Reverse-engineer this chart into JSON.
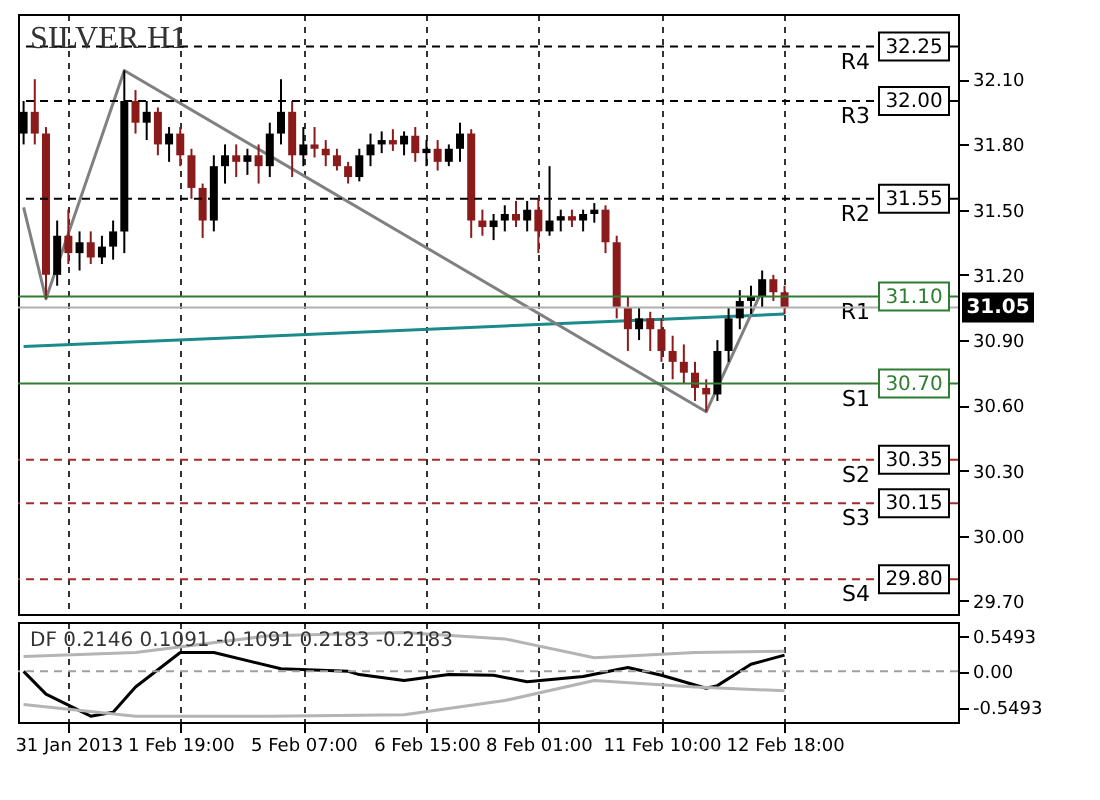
{
  "chart_data": [
    {
      "type": "candlestick",
      "title": "SILVER H1",
      "categories": [
        null,
        null,
        null,
        null,
        "31 Jan 2013",
        null,
        null,
        null,
        null,
        null,
        null,
        null,
        null,
        null,
        "1 Feb 19:00",
        null,
        null,
        null,
        null,
        null,
        null,
        null,
        null,
        null,
        null,
        "5 Feb 07:00",
        null,
        null,
        null,
        null,
        null,
        null,
        null,
        null,
        null,
        null,
        "6 Feb 15:00",
        null,
        null,
        null,
        null,
        null,
        null,
        null,
        null,
        null,
        "8 Feb 01:00",
        null,
        null,
        null,
        null,
        null,
        null,
        null,
        null,
        null,
        null,
        "11 Feb 10:00",
        null,
        null,
        null,
        null,
        null,
        null,
        null,
        null,
        null,
        null,
        "12 Feb 18:00",
        null,
        null,
        null,
        null,
        null,
        null,
        null,
        null,
        null,
        null,
        null,
        null,
        null,
        null,
        null
      ],
      "ohlc": [
        [
          31.85,
          32.0,
          31.8,
          31.95
        ],
        [
          31.95,
          32.1,
          31.8,
          31.85
        ],
        [
          31.85,
          31.88,
          31.09,
          31.2
        ],
        [
          31.2,
          31.45,
          31.15,
          31.38
        ],
        [
          31.38,
          31.5,
          31.25,
          31.3
        ],
        [
          31.3,
          31.4,
          31.22,
          31.35
        ],
        [
          31.35,
          31.4,
          31.25,
          31.28
        ],
        [
          31.28,
          31.38,
          31.25,
          31.33
        ],
        [
          31.33,
          31.45,
          31.27,
          31.4
        ],
        [
          31.4,
          32.14,
          31.3,
          32.0
        ],
        [
          32.0,
          32.05,
          31.85,
          31.9
        ],
        [
          31.9,
          32.0,
          31.82,
          31.95
        ],
        [
          31.95,
          31.97,
          31.75,
          31.8
        ],
        [
          31.8,
          31.88,
          31.72,
          31.85
        ],
        [
          31.85,
          31.88,
          31.7,
          31.75
        ],
        [
          31.75,
          31.78,
          31.55,
          31.6
        ],
        [
          31.6,
          31.62,
          31.37,
          31.45
        ],
        [
          31.45,
          31.75,
          31.4,
          31.7
        ],
        [
          31.7,
          31.8,
          31.62,
          31.75
        ],
        [
          31.75,
          31.8,
          31.65,
          31.72
        ],
        [
          31.72,
          31.78,
          31.66,
          31.75
        ],
        [
          31.75,
          31.8,
          31.62,
          31.7
        ],
        [
          31.7,
          31.9,
          31.65,
          31.85
        ],
        [
          31.85,
          32.1,
          31.8,
          31.95
        ],
        [
          31.95,
          32.0,
          31.65,
          31.75
        ],
        [
          31.75,
          31.88,
          31.7,
          31.8
        ],
        [
          31.8,
          31.88,
          31.74,
          31.78
        ],
        [
          31.78,
          31.82,
          31.7,
          31.75
        ],
        [
          31.75,
          31.78,
          31.68,
          31.7
        ],
        [
          31.7,
          31.72,
          31.62,
          31.65
        ],
        [
          31.65,
          31.78,
          31.63,
          31.75
        ],
        [
          31.75,
          31.85,
          31.7,
          31.8
        ],
        [
          31.8,
          31.86,
          31.76,
          31.82
        ],
        [
          31.82,
          31.87,
          31.77,
          31.8
        ],
        [
          31.8,
          31.86,
          31.75,
          31.84
        ],
        [
          31.84,
          31.88,
          31.72,
          31.76
        ],
        [
          31.76,
          31.82,
          31.7,
          31.78
        ],
        [
          31.78,
          31.82,
          31.68,
          31.72
        ],
        [
          31.72,
          31.8,
          31.7,
          31.78
        ],
        [
          31.78,
          31.9,
          31.72,
          31.85
        ],
        [
          31.85,
          31.87,
          31.37,
          31.45
        ],
        [
          31.45,
          31.5,
          31.38,
          31.42
        ],
        [
          31.42,
          31.48,
          31.36,
          31.45
        ],
        [
          31.45,
          31.52,
          31.4,
          31.48
        ],
        [
          31.48,
          31.54,
          31.42,
          31.45
        ],
        [
          31.45,
          31.54,
          31.4,
          31.5
        ],
        [
          31.5,
          31.55,
          31.3,
          31.4
        ],
        [
          31.4,
          31.7,
          31.38,
          31.45
        ],
        [
          31.45,
          31.5,
          31.4,
          31.47
        ],
        [
          31.47,
          31.5,
          31.42,
          31.45
        ],
        [
          31.45,
          31.5,
          31.4,
          31.48
        ],
        [
          31.48,
          31.53,
          31.44,
          31.5
        ],
        [
          31.5,
          31.52,
          31.3,
          31.35
        ],
        [
          31.35,
          31.38,
          31.0,
          31.05
        ],
        [
          31.05,
          31.1,
          30.85,
          30.95
        ],
        [
          30.95,
          31.05,
          30.9,
          31.0
        ],
        [
          31.0,
          31.03,
          30.85,
          30.95
        ],
        [
          30.95,
          31.0,
          30.8,
          30.85
        ],
        [
          30.85,
          30.92,
          30.72,
          30.8
        ],
        [
          30.8,
          30.88,
          30.7,
          30.75
        ],
        [
          30.75,
          30.8,
          30.62,
          30.68
        ],
        [
          30.68,
          30.72,
          30.57,
          30.65
        ],
        [
          30.65,
          30.9,
          30.62,
          30.85
        ],
        [
          30.85,
          31.05,
          30.8,
          31.0
        ],
        [
          31.0,
          31.13,
          30.95,
          31.08
        ],
        [
          31.08,
          31.15,
          31.02,
          31.1
        ],
        [
          31.1,
          31.22,
          31.05,
          31.18
        ],
        [
          31.18,
          31.2,
          31.08,
          31.12
        ],
        [
          31.12,
          31.15,
          31.02,
          31.05
        ],
        null,
        null,
        null,
        null,
        null,
        null,
        null,
        null,
        null,
        null,
        null,
        null,
        null,
        null,
        null
      ],
      "colors": [
        "#000000",
        "#8b1a1a",
        "#8b1a1a",
        "#000000",
        "#8b1a1a",
        "#000000",
        "#8b1a1a",
        "#000000",
        "#000000",
        "#000000",
        "#8b1a1a",
        "#000000",
        "#8b1a1a",
        "#000000",
        "#8b1a1a",
        "#8b1a1a",
        "#8b1a1a",
        "#000000",
        "#000000",
        "#8b1a1a",
        "#000000",
        "#8b1a1a",
        "#000000",
        "#000000",
        "#8b1a1a",
        "#000000",
        "#8b1a1a",
        "#8b1a1a",
        "#8b1a1a",
        "#8b1a1a",
        "#000000",
        "#000000",
        "#000000",
        "#8b1a1a",
        "#000000",
        "#8b1a1a",
        "#000000",
        "#8b1a1a",
        "#000000",
        "#000000",
        "#8b1a1a",
        "#8b1a1a",
        "#000000",
        "#000000",
        "#8b1a1a",
        "#000000",
        "#8b1a1a",
        "#000000",
        "#000000",
        "#8b1a1a",
        "#000000",
        "#000000",
        "#8b1a1a",
        "#8b1a1a",
        "#8b1a1a",
        "#000000",
        "#8b1a1a",
        "#8b1a1a",
        "#8b1a1a",
        "#8b1a1a",
        "#8b1a1a",
        "#8b1a1a",
        "#000000",
        "#000000",
        "#000000",
        "#000000",
        "#000000",
        "#8b1a1a",
        "#8b1a1a",
        null,
        null,
        null,
        null,
        null,
        null,
        null,
        null,
        null,
        null,
        null,
        null,
        null,
        null,
        null
      ],
      "series": [
        {
          "type": "line",
          "color": "#1a8a8a",
          "values": [
            30.87,
            null,
            null,
            null,
            null,
            null,
            null,
            null,
            null,
            null,
            null,
            null,
            null,
            null,
            null,
            null,
            null,
            null,
            null,
            null,
            null,
            null,
            null,
            null,
            null,
            null,
            null,
            null,
            null,
            null,
            null,
            null,
            null,
            null,
            null,
            null,
            null,
            null,
            null,
            null,
            null,
            null,
            null,
            null,
            null,
            null,
            null,
            null,
            null,
            null,
            null,
            null,
            null,
            null,
            null,
            null,
            null,
            null,
            null,
            null,
            null,
            null,
            null,
            null,
            null,
            null,
            null,
            null,
            31.02,
            null,
            null,
            null,
            null,
            null,
            null,
            null,
            null,
            null,
            null,
            null,
            null,
            null,
            null,
            null
          ]
        },
        {
          "type": "line",
          "color": "#808080",
          "values": [
            31.51,
            null,
            31.09,
            null,
            null,
            null,
            null,
            null,
            null,
            32.14,
            null,
            null,
            null,
            null,
            null,
            null,
            null,
            null,
            null,
            null,
            null,
            null,
            null,
            null,
            null,
            null,
            null,
            null,
            null,
            null,
            null,
            null,
            null,
            null,
            null,
            null,
            null,
            null,
            null,
            null,
            null,
            null,
            null,
            null,
            null,
            null,
            null,
            null,
            null,
            null,
            null,
            null,
            null,
            null,
            null,
            null,
            null,
            null,
            null,
            null,
            null,
            30.57,
            null,
            null,
            null,
            null,
            31.13,
            null,
            null,
            null,
            null,
            null,
            null,
            null,
            null,
            null,
            null,
            null,
            null,
            null,
            null,
            null,
            null,
            null
          ]
        }
      ],
      "ref_lines": [
        {
          "axis": "y",
          "value": 32.25,
          "label": "R4",
          "color": "#000000",
          "line_style": "dashed"
        },
        {
          "axis": "y",
          "value": 32.0,
          "label": "R3",
          "color": "#000000",
          "line_style": "dashed"
        },
        {
          "axis": "y",
          "value": 31.55,
          "label": "R2",
          "color": "#000000",
          "line_style": "dashed"
        },
        {
          "axis": "y",
          "value": 31.1,
          "label": "R1",
          "color": "#2e7d32",
          "line_style": "solid"
        },
        {
          "axis": "y",
          "value": 30.7,
          "label": "S1",
          "color": "#2e7d32",
          "line_style": "solid"
        },
        {
          "axis": "y",
          "value": 30.35,
          "label": "S2",
          "color": "#a52a2a",
          "line_style": "dashed"
        },
        {
          "axis": "y",
          "value": 30.15,
          "label": "S3",
          "color": "#a52a2a",
          "line_style": "dashed"
        },
        {
          "axis": "y",
          "value": 29.8,
          "label": "S4",
          "color": "#a52a2a",
          "line_style": "dashed"
        },
        {
          "axis": "y",
          "value": 31.05,
          "label": null,
          "color": "#b0b0b0",
          "line_style": "solid"
        }
      ],
      "annotations": [
        {
          "text": "32.25",
          "y": 32.25
        },
        {
          "text": "32.00",
          "y": 32.0
        },
        {
          "text": "31.55",
          "y": 31.55
        },
        {
          "text": "31.10",
          "y": 31.1
        },
        {
          "text": "30.70",
          "y": 30.7
        },
        {
          "text": "30.35",
          "y": 30.35
        },
        {
          "text": "30.15",
          "y": 30.15
        },
        {
          "text": "29.80",
          "y": 29.8
        },
        {
          "text": "31.05",
          "y": 31.05
        }
      ],
      "ylim": [
        29.64,
        32.4
      ],
      "yticks": [
        {
          "value": 32.1,
          "label": "32.10"
        },
        {
          "value": 31.8,
          "label": "31.80"
        },
        {
          "value": 31.5,
          "label": "31.50"
        },
        {
          "value": 31.2,
          "label": "31.20"
        },
        {
          "value": 30.9,
          "label": "30.90"
        },
        {
          "value": 30.6,
          "label": "30.60"
        },
        {
          "value": 30.3,
          "label": "30.30"
        },
        {
          "value": 30.0,
          "label": "30.00"
        },
        {
          "value": 29.7,
          "label": "29.70"
        }
      ],
      "grid": "x"
    },
    {
      "type": "line",
      "title": "DF 0.2146 0.1091 -0.1091 0.2183 -0.2183",
      "categories": [
        null,
        null,
        null,
        null,
        null,
        null,
        null,
        null,
        null,
        null,
        null,
        null,
        null,
        null,
        null,
        null,
        null,
        null,
        null,
        null,
        null,
        null,
        null,
        null,
        null,
        null,
        null,
        null,
        null,
        null,
        null,
        null,
        null,
        null,
        null,
        null,
        null,
        null,
        null,
        null,
        null,
        null,
        null,
        null,
        null,
        null,
        null,
        null,
        null,
        null,
        null,
        null,
        null,
        null,
        null,
        null,
        null,
        null,
        null,
        null,
        null,
        null,
        null,
        null,
        null,
        null,
        null,
        null,
        null,
        null,
        null,
        null,
        null,
        null,
        null,
        null,
        null,
        null,
        null,
        null,
        null,
        null,
        null,
        null
      ],
      "series": [
        {
          "type": "line",
          "color": "#000000",
          "values": [
            0,
            null,
            -0.35,
            null,
            null,
            null,
            -0.69,
            null,
            -0.63,
            null,
            -0.24,
            null,
            null,
            null,
            0.29,
            null,
            null,
            0.29,
            null,
            null,
            null,
            null,
            null,
            0.04,
            null,
            null,
            null,
            null,
            null,
            0,
            -0.05,
            null,
            null,
            null,
            -0.14,
            null,
            null,
            null,
            -0.05,
            null,
            null,
            null,
            -0.06,
            null,
            null,
            -0.16,
            null,
            null,
            null,
            null,
            -0.08,
            null,
            null,
            null,
            0.06,
            null,
            null,
            -0.06,
            null,
            null,
            null,
            -0.26,
            -0.22,
            null,
            null,
            0.11,
            null,
            null,
            0.25,
            null,
            null,
            null,
            null,
            null,
            null,
            null,
            null,
            null,
            null,
            null,
            null,
            null,
            null,
            null
          ]
        },
        {
          "type": "line",
          "color": "#b4b4b4",
          "values": [
            0.23,
            null,
            null,
            null,
            null,
            null,
            null,
            null,
            null,
            null,
            0.29,
            null,
            null,
            null,
            null,
            null,
            null,
            null,
            null,
            null,
            null,
            null,
            0.55,
            null,
            null,
            null,
            null,
            null,
            null,
            null,
            null,
            null,
            null,
            null,
            0.6,
            null,
            null,
            null,
            null,
            null,
            null,
            null,
            null,
            0.5,
            null,
            null,
            null,
            null,
            null,
            null,
            null,
            0.21,
            null,
            null,
            null,
            null,
            null,
            null,
            null,
            null,
            0.29,
            null,
            null,
            null,
            null,
            null,
            null,
            null,
            0.31,
            null,
            null,
            null,
            null,
            null,
            null,
            null,
            null,
            null,
            null,
            null,
            null,
            null,
            null,
            null
          ]
        },
        {
          "type": "line",
          "color": "#b4b4b4",
          "values": [
            -0.51,
            null,
            null,
            null,
            null,
            null,
            null,
            null,
            null,
            null,
            -0.69,
            null,
            null,
            null,
            null,
            null,
            null,
            null,
            null,
            null,
            null,
            null,
            -0.69,
            null,
            null,
            null,
            null,
            null,
            null,
            null,
            null,
            null,
            null,
            null,
            -0.67,
            null,
            null,
            null,
            null,
            null,
            null,
            null,
            null,
            -0.45,
            null,
            null,
            null,
            null,
            null,
            null,
            null,
            -0.14,
            null,
            null,
            null,
            null,
            null,
            null,
            null,
            null,
            -0.24,
            null,
            null,
            null,
            null,
            null,
            null,
            null,
            -0.3,
            null,
            null,
            null,
            null,
            null,
            null,
            null,
            null,
            null,
            null,
            null,
            null,
            null,
            null,
            null
          ]
        }
      ],
      "ref_lines": [
        {
          "axis": "y",
          "value": 0,
          "label": null,
          "color": "#a0a0a0",
          "line_style": "dashed"
        }
      ],
      "ylim": [
        -0.78,
        0.76
      ],
      "tick_labels": "y",
      "yticks": [
        0.5493,
        {
          "value": 0,
          "label": "0.00"
        },
        -0.5493
      ],
      "grid": "x"
    }
  ]
}
